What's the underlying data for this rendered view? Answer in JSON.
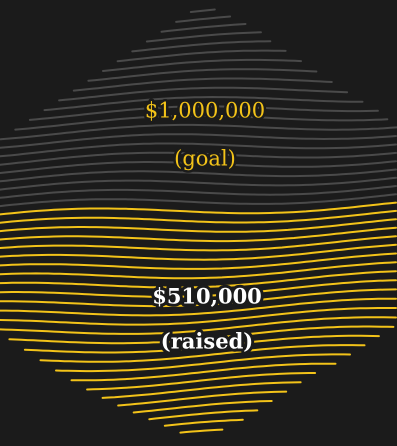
{
  "goal": {
    "amount": "$1,000,000",
    "label": "(goal)"
  },
  "raised": {
    "amount": "$510,000",
    "label": "(raised)"
  }
}
